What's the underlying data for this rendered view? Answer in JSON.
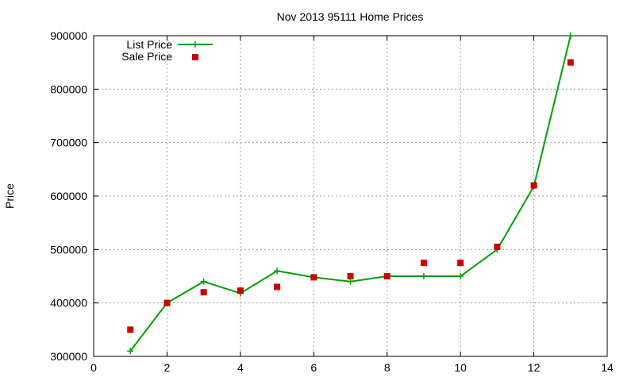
{
  "chart_data": {
    "type": "line",
    "title": "Nov 2013 95111 Home Prices",
    "xlabel": "",
    "ylabel": "Price",
    "xlim": [
      0,
      14
    ],
    "ylim": [
      300000,
      900000
    ],
    "x_ticks": [
      0,
      2,
      4,
      6,
      8,
      10,
      12,
      14
    ],
    "y_ticks": [
      300000,
      400000,
      500000,
      600000,
      700000,
      800000,
      900000
    ],
    "grid": true,
    "legend_position": "top-left",
    "series": [
      {
        "name": "List Price",
        "style": "line+cross",
        "color": "#00a000",
        "x": [
          1,
          2,
          3,
          4,
          5,
          6,
          7,
          8,
          9,
          10,
          11,
          12,
          13
        ],
        "y": [
          310000,
          400000,
          440000,
          418000,
          460000,
          448000,
          440000,
          450000,
          450000,
          450000,
          500000,
          618000,
          900000
        ]
      },
      {
        "name": "Sale Price",
        "style": "square-points",
        "color": "#cc0000",
        "x": [
          1,
          2,
          3,
          4,
          5,
          6,
          7,
          8,
          9,
          10,
          11,
          12,
          13
        ],
        "y": [
          350000,
          400000,
          420000,
          423000,
          430000,
          448000,
          450000,
          450000,
          475000,
          475000,
          505000,
          620000,
          850000
        ]
      }
    ]
  }
}
